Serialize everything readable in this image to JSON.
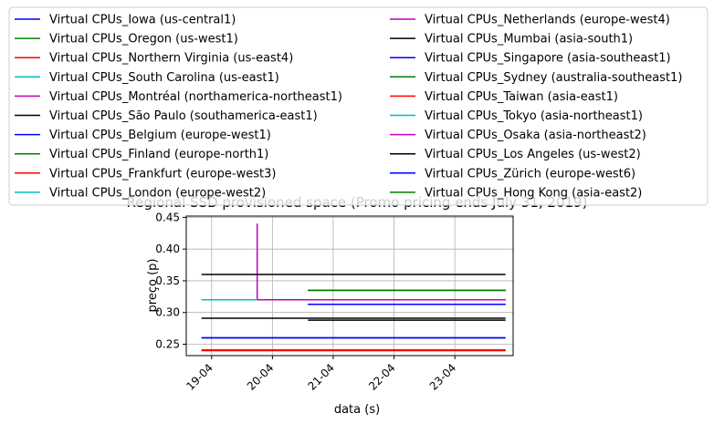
{
  "chart_data": {
    "type": "line",
    "title": "Regional SSD provisioned space (Promo pricing ends July 31, 2019)",
    "xlabel": "data (s)",
    "ylabel": "preço (p)",
    "x_ticks": [
      "19-04",
      "20-04",
      "21-04",
      "22-04",
      "23-04"
    ],
    "y_ticks": [
      "0.25",
      "0.30",
      "0.35",
      "0.40",
      "0.45"
    ],
    "x_range": [
      "2019-04-18T14:00",
      "2019-04-23T23:00"
    ],
    "ylim": [
      0.232,
      0.452
    ],
    "grid": true,
    "legend_position": "top",
    "series": [
      {
        "name": "Virtual CPUs_Iowa (us-central1)",
        "color": "#0000ff",
        "points": [
          [
            "2019-04-18T20:00",
            0.26
          ],
          [
            "2019-04-23T20:00",
            0.26
          ]
        ]
      },
      {
        "name": "Virtual CPUs_Oregon (us-west1)",
        "color": "#008000",
        "points": [
          [
            "2019-04-18T20:00",
            0.24
          ],
          [
            "2019-04-23T20:00",
            0.24
          ]
        ]
      },
      {
        "name": "Virtual CPUs_Northern Virginia (us-east4)",
        "color": "#ff0000",
        "points": [
          [
            "2019-04-18T20:00",
            0.241
          ],
          [
            "2019-04-23T20:00",
            0.241
          ]
        ]
      },
      {
        "name": "Virtual CPUs_South Carolina (us-east1)",
        "color": "#00bfbf",
        "points": [
          [
            "2019-04-18T20:00",
            0.32
          ],
          [
            "2019-04-19T18:00",
            0.32
          ],
          [
            "2019-04-19T18:00",
            0.32
          ],
          [
            "2019-04-23T20:00",
            0.32
          ]
        ]
      },
      {
        "name": "Virtual CPUs_Montréal (northamerica-northeast1)",
        "color": "#bf00bf",
        "points": [
          [
            "2019-04-19T18:00",
            0.44
          ],
          [
            "2019-04-19T18:00",
            0.32
          ],
          [
            "2019-04-23T20:00",
            0.32
          ]
        ]
      },
      {
        "name": "Virtual CPUs_São Paulo (southamerica-east1)",
        "color": "#000000",
        "points": [
          [
            "2019-04-18T20:00",
            0.36
          ],
          [
            "2019-04-23T20:00",
            0.36
          ]
        ]
      },
      {
        "name": "Virtual CPUs_Belgium (europe-west1)",
        "color": "#0000ff",
        "points": [
          [
            "2019-04-20T14:00",
            0.313
          ],
          [
            "2019-04-23T20:00",
            0.313
          ]
        ]
      },
      {
        "name": "Virtual CPUs_Finland (europe-north1)",
        "color": "#008000",
        "points": [
          [
            "2019-04-20T14:00",
            0.335
          ],
          [
            "2019-04-23T20:00",
            0.335
          ]
        ]
      },
      {
        "name": "Virtual CPUs_Frankfurt (europe-west3)",
        "color": "#ff0000",
        "points": [
          [
            "2019-04-18T20:00",
            0.24
          ],
          [
            "2019-04-23T20:00",
            0.24
          ]
        ]
      },
      {
        "name": "Virtual CPUs_London (europe-west2)",
        "color": "#00bfbf",
        "points": [
          [
            "2019-04-18T20:00",
            0.32
          ],
          [
            "2019-04-23T20:00",
            0.32
          ]
        ]
      },
      {
        "name": "Virtual CPUs_Netherlands (europe-west4)",
        "color": "#bf00bf",
        "points": [
          [
            "2019-04-19T18:00",
            0.32
          ],
          [
            "2019-04-23T20:00",
            0.32
          ]
        ]
      },
      {
        "name": "Virtual CPUs_Mumbai (asia-south1)",
        "color": "#000000",
        "points": [
          [
            "2019-04-18T20:00",
            0.291
          ],
          [
            "2019-04-23T20:00",
            0.291
          ]
        ]
      },
      {
        "name": "Virtual CPUs_Singapore (asia-southeast1)",
        "color": "#0000ff",
        "points": [
          [
            "2019-04-18T20:00",
            0.26
          ],
          [
            "2019-04-23T20:00",
            0.26
          ]
        ]
      },
      {
        "name": "Virtual CPUs_Sydney (australia-southeast1)",
        "color": "#008000",
        "points": [
          [
            "2019-04-20T14:00",
            0.335
          ],
          [
            "2019-04-23T20:00",
            0.335
          ]
        ]
      },
      {
        "name": "Virtual CPUs_Taiwan (asia-east1)",
        "color": "#ff0000",
        "points": [
          [
            "2019-04-18T20:00",
            0.24
          ],
          [
            "2019-04-23T20:00",
            0.24
          ]
        ]
      },
      {
        "name": "Virtual CPUs_Tokyo (asia-northeast1)",
        "color": "#00bfbf",
        "points": [
          [
            "2019-04-18T20:00",
            0.32
          ],
          [
            "2019-04-19T18:00",
            0.32
          ]
        ]
      },
      {
        "name": "Virtual CPUs_Osaka (asia-northeast2)",
        "color": "#bf00bf",
        "points": [
          [
            "2019-04-19T18:00",
            0.32
          ],
          [
            "2019-04-23T20:00",
            0.32
          ]
        ]
      },
      {
        "name": "Virtual CPUs_Los Angeles (us-west2)",
        "color": "#000000",
        "points": [
          [
            "2019-04-20T14:00",
            0.288
          ],
          [
            "2019-04-23T20:00",
            0.288
          ]
        ]
      },
      {
        "name": "Virtual CPUs_Zürich (europe-west6)",
        "color": "#0000ff",
        "points": [
          [
            "2019-04-20T14:00",
            0.313
          ],
          [
            "2019-04-23T20:00",
            0.313
          ]
        ]
      },
      {
        "name": "Virtual CPUs_Hong Kong (asia-east2)",
        "color": "#008000",
        "points": [
          [
            "2019-04-20T14:00",
            0.335
          ],
          [
            "2019-04-23T20:00",
            0.335
          ]
        ]
      }
    ]
  }
}
